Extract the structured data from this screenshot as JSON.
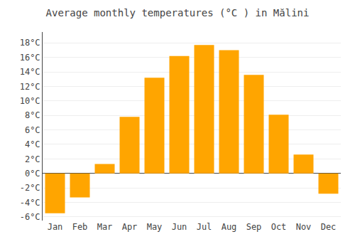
{
  "chart_data": {
    "type": "bar",
    "title": "Average monthly temperatures (°C ) in Mălini",
    "categories": [
      "Jan",
      "Feb",
      "Mar",
      "Apr",
      "May",
      "Jun",
      "Jul",
      "Aug",
      "Sep",
      "Oct",
      "Nov",
      "Dec"
    ],
    "values": [
      -5.5,
      -3.3,
      1.3,
      7.8,
      13.2,
      16.2,
      17.7,
      17.0,
      13.6,
      8.1,
      2.6,
      -2.8
    ],
    "color": "#FFA500",
    "ylim": [
      -6.5,
      19.5
    ],
    "yticks": [
      {
        "value": -6,
        "label": "-6°C"
      },
      {
        "value": -4,
        "label": "-4°C"
      },
      {
        "value": -2,
        "label": "-2°C"
      },
      {
        "value": 0,
        "label": "0°C"
      },
      {
        "value": 2,
        "label": "2°C"
      },
      {
        "value": 4,
        "label": "4°C"
      },
      {
        "value": 6,
        "label": "6°C"
      },
      {
        "value": 8,
        "label": "8°C"
      },
      {
        "value": 10,
        "label": "10°C"
      },
      {
        "value": 12,
        "label": "12°C"
      },
      {
        "value": 14,
        "label": "14°C"
      },
      {
        "value": 16,
        "label": "16°C"
      },
      {
        "value": 18,
        "label": "18°C"
      }
    ],
    "grid": true
  }
}
